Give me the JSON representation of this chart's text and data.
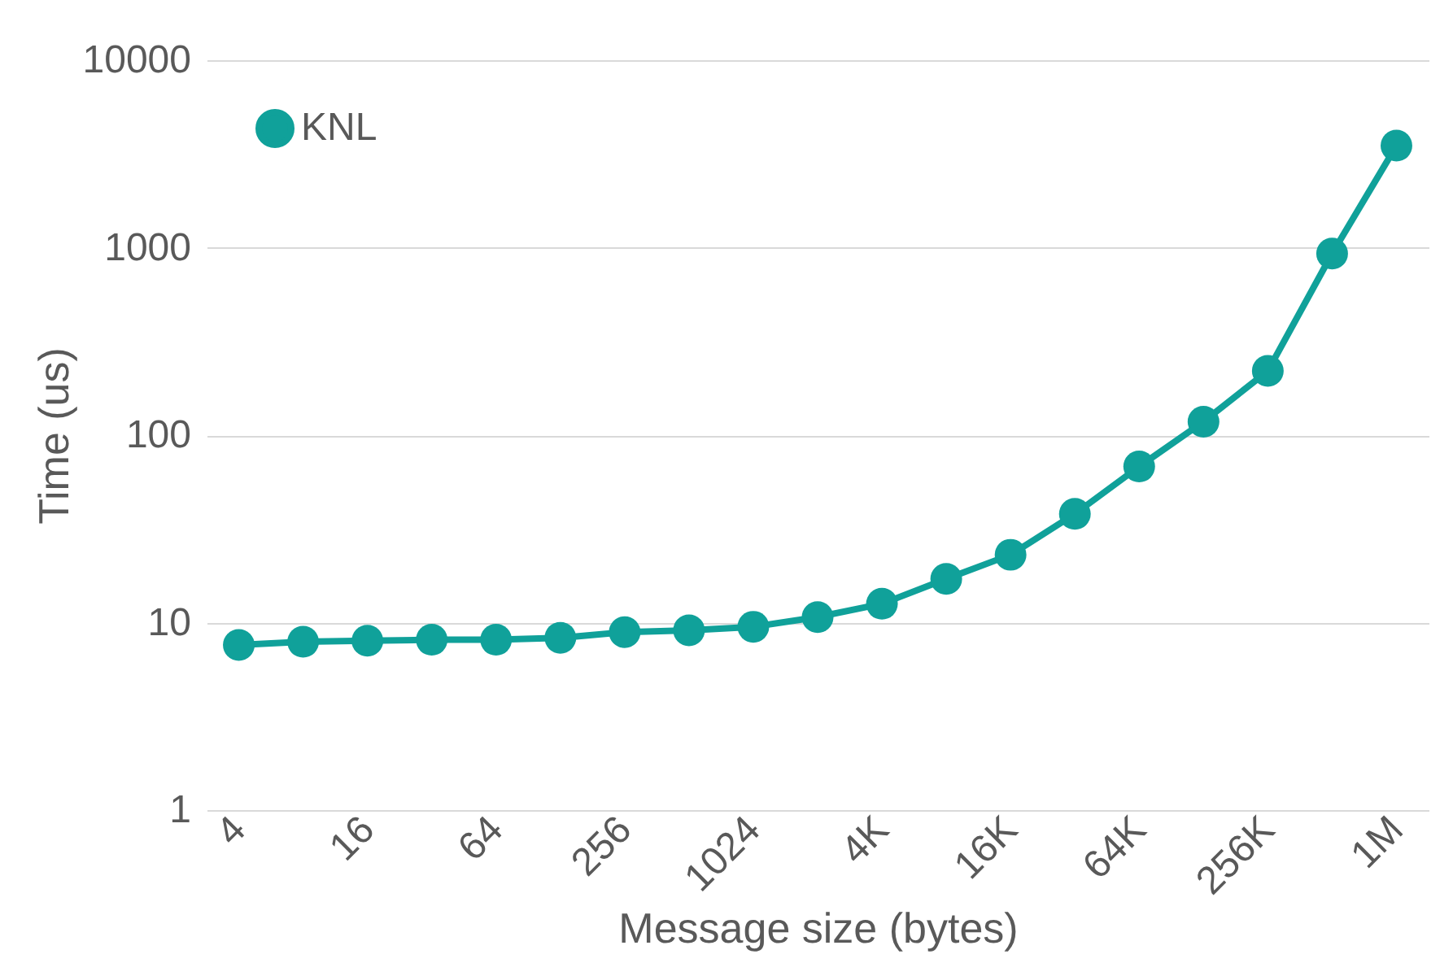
{
  "chart_data": {
    "type": "line",
    "xlabel": "Message size (bytes)",
    "ylabel": "Time (us)",
    "categories": [
      "4",
      null,
      "16",
      null,
      "64",
      null,
      "256",
      null,
      "1024",
      null,
      "4K",
      null,
      "16K",
      null,
      "64K",
      null,
      "256K",
      null,
      "1M"
    ],
    "series": [
      {
        "name": "KNL",
        "color": "#10a19a",
        "values": [
          7.6,
          7.9,
          8.0,
          8.1,
          8.1,
          8.3,
          8.9,
          9.1,
          9.5,
          10.7,
          12.6,
          17.1,
          23,
          38,
          68,
          118,
          220,
          930,
          3500
        ]
      }
    ],
    "log": "y",
    "ylim": [
      1,
      10000
    ],
    "yticks": [
      1,
      10,
      100,
      1000,
      10000
    ],
    "grid": "y",
    "legend": "top left",
    "marker": "circle",
    "line_style": "solid"
  }
}
